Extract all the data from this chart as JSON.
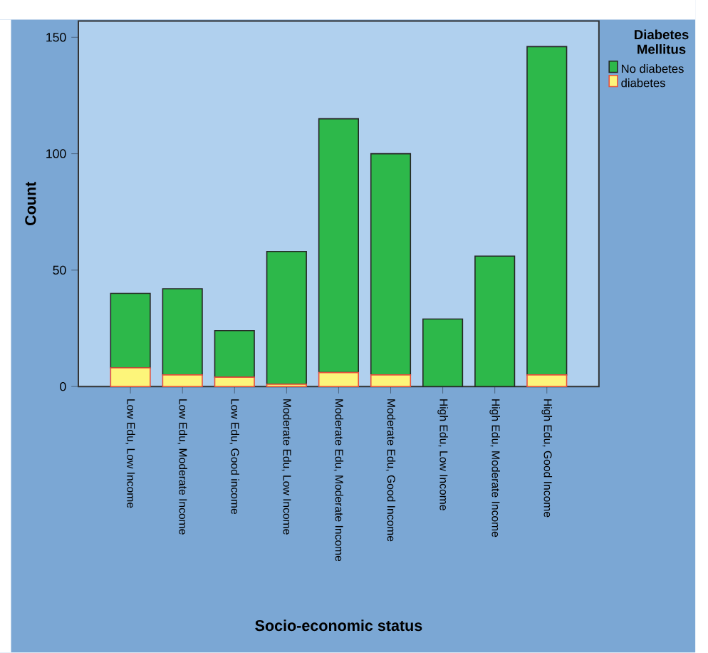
{
  "chart_data": {
    "type": "bar",
    "stacked": true,
    "xlabel": "Socio-economic status",
    "ylabel": "Count",
    "legend_title": "Diabetes Mellitus",
    "legend": "top right",
    "categories": [
      "Low Edu, Low Income",
      "Low Edu, Moderate Income",
      "Low Edu, Good income",
      "Moderate Edu, Low Income",
      "Moderate Edu, Moderate Income",
      "Moderate Edu, Good Income",
      "High Edu, Low Income",
      "High Edu, Moderate Income",
      "High Edu, Good Income"
    ],
    "series": [
      {
        "name": "diabetes",
        "color": "#fdf57a",
        "values": [
          8,
          5,
          4,
          1,
          6,
          5,
          0,
          0,
          5
        ]
      },
      {
        "name": "No diabetes",
        "color": "#2db84a",
        "values": [
          32,
          37,
          20,
          57,
          109,
          95,
          29,
          56,
          141
        ]
      }
    ],
    "ylim": [
      0,
      157
    ],
    "yticks": [
      0,
      50,
      100,
      150
    ]
  }
}
